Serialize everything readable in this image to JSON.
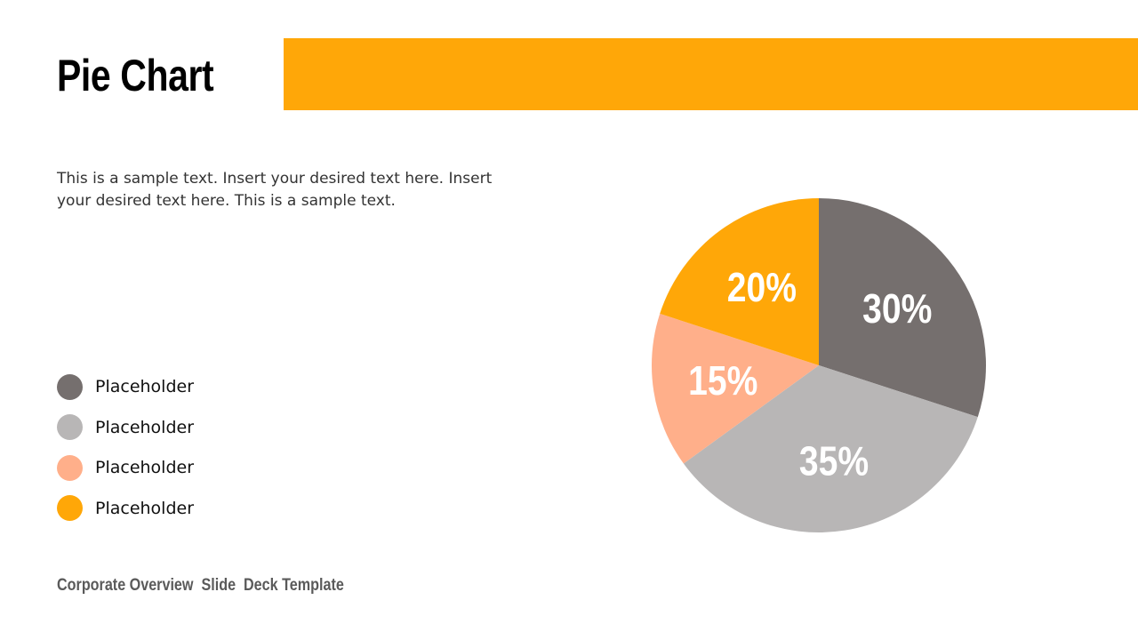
{
  "title": "Pie Chart",
  "description": "This is a sample text. Insert your desired text here. Insert your desired text here. This is a sample text.",
  "footer": "Corporate Overview  Slide  Deck Template",
  "accent_color": "#FFA708",
  "legend": [
    {
      "label": "Placeholder",
      "color": "#756F6E"
    },
    {
      "label": "Placeholder",
      "color": "#B8B6B6"
    },
    {
      "label": "Placeholder",
      "color": "#FFAF8A"
    },
    {
      "label": "Placeholder",
      "color": "#FFA708"
    }
  ],
  "chart_data": {
    "type": "pie",
    "start": "top, clockwise",
    "values": [
      30,
      35,
      15,
      20
    ],
    "labels": [
      "30%",
      "35%",
      "15%",
      "20%"
    ],
    "colors": [
      "#756F6E",
      "#B8B6B6",
      "#FFAF8A",
      "#FFA708"
    ]
  }
}
